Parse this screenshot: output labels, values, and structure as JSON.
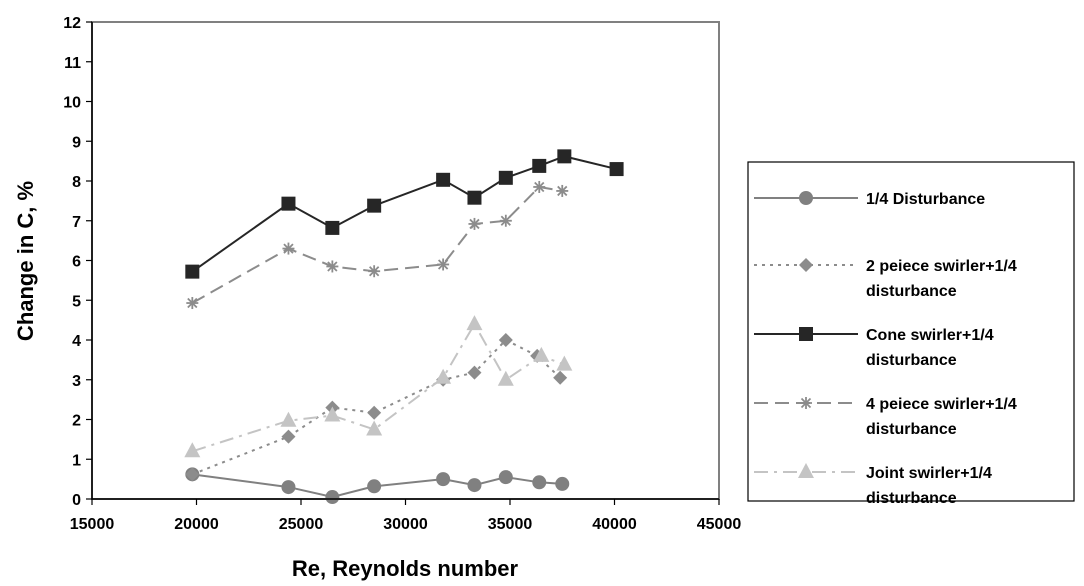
{
  "chart_data": {
    "type": "line",
    "title": "",
    "xlabel": "Re, Reynolds number",
    "ylabel": "Change in C, %",
    "xlim": [
      15000,
      45000
    ],
    "ylim": [
      0,
      12
    ],
    "xticks": [
      "15000",
      "20000",
      "25000",
      "30000",
      "35000",
      "40000",
      "45000"
    ],
    "yticks": [
      "0",
      "1",
      "2",
      "3",
      "4",
      "5",
      "6",
      "7",
      "8",
      "9",
      "10",
      "11",
      "12"
    ],
    "grid": false,
    "legend_position": "right",
    "series": [
      {
        "name": "1/4 Disturbance",
        "legend_lines": [
          "1/4 Disturbance"
        ],
        "marker": "circle",
        "dash": "solid",
        "color": "#808080",
        "x": [
          19800,
          24400,
          26500,
          28500,
          31800,
          33300,
          34800,
          36400,
          37500
        ],
        "y": [
          0.62,
          0.3,
          0.05,
          0.32,
          0.5,
          0.35,
          0.55,
          0.42,
          0.38
        ]
      },
      {
        "name": "2 peiece swirler+1/4 disturbance",
        "legend_lines": [
          "2 peiece swirler+1/4",
          "disturbance"
        ],
        "marker": "diamond",
        "dash": "dotted",
        "color": "#8c8c8c",
        "x": [
          19800,
          24400,
          26500,
          28500,
          31800,
          33300,
          34800,
          36300,
          37400
        ],
        "y": [
          0.62,
          1.57,
          2.3,
          2.17,
          3.0,
          3.18,
          4.0,
          3.6,
          3.05
        ]
      },
      {
        "name": "Cone swirler+1/4 disturbance",
        "legend_lines": [
          "Cone swirler+1/4",
          "disturbance"
        ],
        "marker": "square",
        "dash": "solid",
        "color": "#262626",
        "x": [
          19800,
          24400,
          26500,
          28500,
          31800,
          33300,
          34800,
          36400,
          37600,
          40100
        ],
        "y": [
          5.72,
          7.43,
          6.82,
          7.38,
          8.03,
          7.58,
          8.08,
          8.38,
          8.62,
          8.3
        ]
      },
      {
        "name": "4 peiece swirler+1/4 disturbance",
        "legend_lines": [
          "4 peiece swirler+1/4",
          "disturbance"
        ],
        "marker": "star",
        "dash": "dashed",
        "color": "#8c8c8c",
        "x": [
          19800,
          24400,
          26500,
          28500,
          31800,
          33300,
          34800,
          36400,
          37500
        ],
        "y": [
          4.93,
          6.3,
          5.85,
          5.73,
          5.9,
          6.92,
          7.0,
          7.85,
          7.75
        ]
      },
      {
        "name": "Joint swirler+1/4 disturbance",
        "legend_lines": [
          "Joint swirler+1/4",
          "disturbance"
        ],
        "marker": "triangle",
        "dash": "dashdot",
        "color": "#c4c4c4",
        "x": [
          19800,
          24400,
          26500,
          28500,
          31800,
          33300,
          34800,
          36500,
          37600
        ],
        "y": [
          1.2,
          1.97,
          2.1,
          1.75,
          3.05,
          4.4,
          3.0,
          3.6,
          3.38
        ]
      }
    ]
  }
}
